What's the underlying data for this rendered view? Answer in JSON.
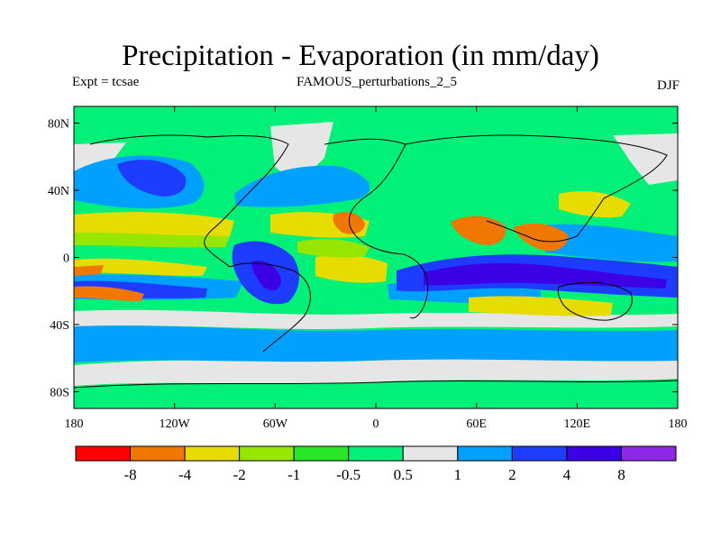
{
  "chart_data": {
    "type": "heatmap",
    "title": "Precipitation - Evaporation (in mm/day)",
    "subtitle_left": "Expt = tcsae",
    "subtitle_center": "FAMOUS_perturbations_2_5",
    "subtitle_right": "DJF",
    "x_ticks": [
      "180",
      "120W",
      "60W",
      "0",
      "60E",
      "120E",
      "180"
    ],
    "y_ticks": [
      "80N",
      "40N",
      "0",
      "40S",
      "80S"
    ],
    "x_range": [
      -180,
      180
    ],
    "y_range": [
      -90,
      90
    ],
    "colorbar": {
      "labels": [
        "-8",
        "-4",
        "-2",
        "-1",
        "-0.5",
        "0.5",
        "1",
        "2",
        "4",
        "8"
      ],
      "colors": [
        "#ff0000",
        "#f07800",
        "#e6dc00",
        "#96e600",
        "#28e628",
        "#00f078",
        "#e6e6e6",
        "#00a0ff",
        "#1e3cff",
        "#3c00e6",
        "#8c28e6"
      ]
    }
  },
  "colors": {
    "background": "#00f078",
    "border": "#000000",
    "coast": "#000000"
  }
}
